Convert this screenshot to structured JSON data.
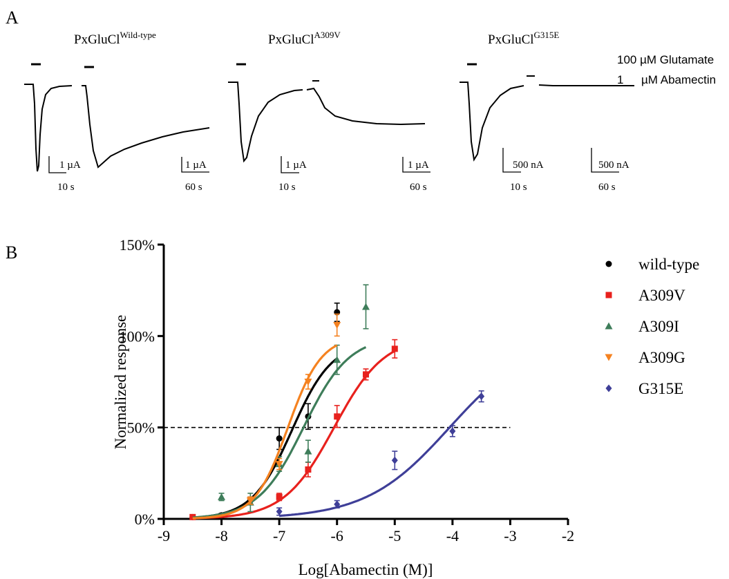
{
  "panel_a": {
    "label": "A",
    "cells": [
      {
        "title_base": "PxGluCl",
        "title_sup": "Wild-type",
        "short_scale_y": "1 µA",
        "short_scale_x": "10 s",
        "long_scale_y": "1 µA",
        "long_scale_x": "60 s"
      },
      {
        "title_base": "PxGluCl",
        "title_sup": "A309V",
        "short_scale_y": "1 µA",
        "short_scale_x": "10 s",
        "long_scale_y": "1 µA",
        "long_scale_x": "60 s"
      },
      {
        "title_base": "PxGluCl",
        "title_sup": "G315E",
        "short_scale_y": "500 nA",
        "short_scale_x": "10 s",
        "long_scale_y": "500 nA",
        "long_scale_x": "60 s"
      }
    ],
    "legend": {
      "glutamate": "100  µM Glutamate",
      "abamectin_num": "1",
      "abamectin_text": "µM Abamectin"
    }
  },
  "chart_data": {
    "type": "scatter",
    "panel_label": "B",
    "xlabel": "Log[Abamectin (M)]",
    "ylabel": "Normalized response",
    "xlim": [
      -9,
      -2
    ],
    "ylim": [
      0,
      150
    ],
    "x_ticks": [
      -9,
      -8,
      -7,
      -6,
      -5,
      -4,
      -3,
      -2
    ],
    "x_tick_labels": [
      "-9",
      "-8",
      "-7",
      "-6",
      "-5",
      "-4",
      "-3",
      "-2"
    ],
    "y_ticks": [
      0,
      50,
      100,
      150
    ],
    "y_tick_labels": [
      "0%",
      "50%",
      "100%",
      "150%"
    ],
    "reference_line": {
      "y": 50,
      "x_range": [
        -9,
        -3
      ],
      "style": "dashed"
    },
    "legend_position": "right",
    "series": [
      {
        "name": "wild-type",
        "color": "#000000",
        "marker": "circle",
        "points": [
          {
            "x": -8.5,
            "y": 1,
            "err": 1
          },
          {
            "x": -8,
            "y": 2,
            "err": 1
          },
          {
            "x": -7.5,
            "y": 10,
            "err": 2
          },
          {
            "x": -7,
            "y": 44,
            "err": 6
          },
          {
            "x": -6.5,
            "y": 56,
            "err": 7
          },
          {
            "x": -6,
            "y": 113,
            "err": 5
          }
        ],
        "fit": {
          "logEC50": -6.78,
          "hill": 1.25,
          "top": 97,
          "from": -8.5,
          "to": -6.0
        }
      },
      {
        "name": "A309V",
        "color": "#e8211d",
        "marker": "square",
        "points": [
          {
            "x": -8.5,
            "y": 1,
            "err": 1
          },
          {
            "x": -7,
            "y": 12,
            "err": 2
          },
          {
            "x": -6.5,
            "y": 27,
            "err": 4
          },
          {
            "x": -6,
            "y": 56,
            "err": 6
          },
          {
            "x": -5.5,
            "y": 79,
            "err": 3
          },
          {
            "x": -5,
            "y": 93,
            "err": 5
          }
        ],
        "fit": {
          "logEC50": -6.05,
          "hill": 1.0,
          "top": 100,
          "from": -8.5,
          "to": -5.0
        }
      },
      {
        "name": "A309I",
        "color": "#3e7d5a",
        "marker": "triangle-up",
        "points": [
          {
            "x": -8,
            "y": 12,
            "err": 2
          },
          {
            "x": -7.5,
            "y": 9,
            "err": 5
          },
          {
            "x": -7,
            "y": 30,
            "err": 4
          },
          {
            "x": -6.5,
            "y": 37,
            "err": 6
          },
          {
            "x": -6,
            "y": 87,
            "err": 8
          },
          {
            "x": -5.5,
            "y": 116,
            "err": 12
          }
        ],
        "fit": {
          "logEC50": -6.58,
          "hill": 1.1,
          "top": 100,
          "from": -8.5,
          "to": -5.5
        }
      },
      {
        "name": "A309G",
        "color": "#f58220",
        "marker": "triangle-down",
        "points": [
          {
            "x": -7.5,
            "y": 10,
            "err": 2
          },
          {
            "x": -7,
            "y": 30,
            "err": 3
          },
          {
            "x": -6.5,
            "y": 75,
            "err": 4
          },
          {
            "x": -6,
            "y": 106,
            "err": 6
          }
        ],
        "fit": {
          "logEC50": -6.85,
          "hill": 1.5,
          "top": 100,
          "from": -8.5,
          "to": -6.0
        }
      },
      {
        "name": "G315E",
        "color": "#3f3f98",
        "marker": "diamond",
        "points": [
          {
            "x": -7,
            "y": 4,
            "err": 2
          },
          {
            "x": -6,
            "y": 8,
            "err": 2
          },
          {
            "x": -5,
            "y": 32,
            "err": 5
          },
          {
            "x": -4,
            "y": 48,
            "err": 3
          },
          {
            "x": -3.5,
            "y": 67,
            "err": 3
          }
        ],
        "fit": {
          "logEC50": -4.05,
          "hill": 0.6,
          "top": 100,
          "from": -7.0,
          "to": -3.5
        }
      }
    ]
  }
}
